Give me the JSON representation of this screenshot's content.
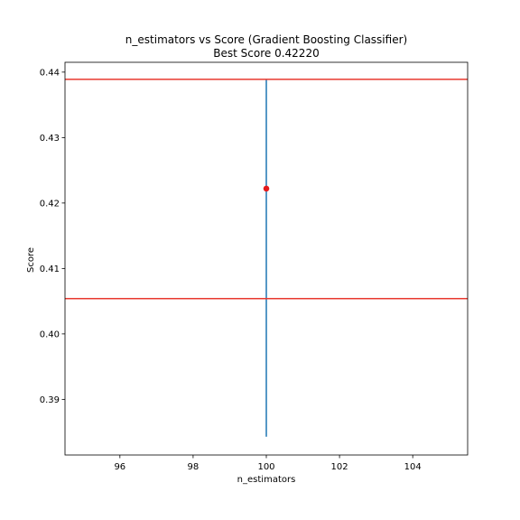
{
  "chart_data": {
    "type": "line",
    "title": "n_estimators vs Score (Gradient Boosting Classifier)",
    "subtitle": "Best Score 0.42220",
    "xlabel": "n_estimators",
    "ylabel": "Score",
    "xlim": [
      94.5,
      105.5
    ],
    "ylim": [
      0.3815,
      0.4415
    ],
    "xticks": [
      96,
      98,
      100,
      102,
      104
    ],
    "yticks": [
      0.39,
      0.4,
      0.41,
      0.42,
      0.43,
      0.44
    ],
    "ytick_labels": [
      "0.39",
      "0.40",
      "0.41",
      "0.42",
      "0.43",
      "0.44"
    ],
    "grid": false,
    "series": [
      {
        "kind": "errorbar",
        "x": [
          100
        ],
        "y": [
          0.4222
        ],
        "yerr_low": [
          0.3843
        ],
        "yerr_high": [
          0.4389
        ],
        "color": "#1f77b4"
      }
    ],
    "best_point": {
      "x": 100,
      "y": 0.4222,
      "color": "#e41a1c"
    },
    "hlines": [
      {
        "y": 0.4389,
        "color": "#e8392f"
      },
      {
        "y": 0.4054,
        "color": "#e8392f"
      }
    ]
  }
}
